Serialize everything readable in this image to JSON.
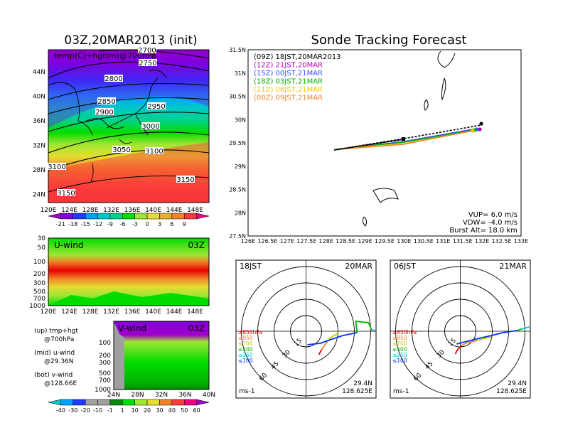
{
  "left_title": "03Z,20MAR2013 (init)",
  "right_title": "Sonde Tracking Forecast",
  "map700": {
    "label": "temp(C)+hgt(m)@700hPa",
    "lat_ticks": [
      "44N",
      "40N",
      "36N",
      "32N",
      "28N",
      "24N"
    ],
    "lon_ticks": [
      "120E",
      "124E",
      "128E",
      "132E",
      "136E",
      "140E",
      "144E",
      "148E"
    ],
    "contour_labels": [
      "2700",
      "2750",
      "2800",
      "2850",
      "2900",
      "2950",
      "3000",
      "3050",
      "3100",
      "3100",
      "3150",
      "3150"
    ],
    "colorbar_labels": [
      "-21",
      "-18",
      "-15",
      "-12",
      "-9",
      "-6",
      "-3",
      "0",
      "3",
      "6",
      "9"
    ],
    "colorbar_colors": [
      "#a000c8",
      "#8200dc",
      "#1e3cff",
      "#00a0ff",
      "#00c8c8",
      "#00d28c",
      "#00dc00",
      "#a0e632",
      "#e6dc32",
      "#e6af2d",
      "#f08228",
      "#fa3c3c",
      "#f00082"
    ]
  },
  "uwind": {
    "label": "U-wind",
    "time": "03Z",
    "y_ticks": [
      "30",
      "50",
      "100",
      "200",
      "300",
      "500",
      "700",
      "1000"
    ],
    "x_ticks": [
      "120E",
      "124E",
      "128E",
      "132E",
      "136E",
      "140E",
      "144E",
      "148E"
    ]
  },
  "vwind": {
    "label": "V-wind",
    "time": "03Z",
    "y_ticks": [
      "100",
      "200",
      "300",
      "500",
      "700",
      "1000"
    ],
    "x_ticks": [
      "24N",
      "28N",
      "32N",
      "36N",
      "40N"
    ],
    "colorbar_labels": [
      "-40",
      "-30",
      "-20",
      "-10",
      "-1",
      "1",
      "10",
      "20",
      "30",
      "40",
      "50",
      "60"
    ],
    "colorbar_colors": [
      "#00c8c8",
      "#00a0ff",
      "#1e3cff",
      "#a0a0a0",
      "#a0a0a0",
      "#008c00",
      "#00dc00",
      "#a0e632",
      "#e6dc32",
      "#f08228",
      "#fa3c3c",
      "#f00082",
      "#a000c8"
    ]
  },
  "notes": [
    {
      "a": "(up) tmp+hgt",
      "b": "@700hPa"
    },
    {
      "a": "(mid) u-wind",
      "b": "@29.36N"
    },
    {
      "a": "(bot) v-wind",
      "b": "@128.66E"
    }
  ],
  "track": {
    "y_ticks": [
      "31.5N",
      "31N",
      "30.5N",
      "30N",
      "29.5N",
      "29N",
      "28.5N",
      "28N",
      "27.5N"
    ],
    "x_ticks": [
      "126E",
      "126.5E",
      "127E",
      "127.5E",
      "128E",
      "128.5E",
      "129E",
      "129.5E",
      "130E",
      "130.5E",
      "131E",
      "131.5E",
      "132E",
      "132.5E",
      "133E"
    ],
    "legend": [
      {
        "text": "(09Z) 18JST,20MAR2013",
        "color": "#000000"
      },
      {
        "text": "(12Z) 21JST,20MAR",
        "color": "#b400b4"
      },
      {
        "text": "(15Z) 00JST,21MAR",
        "color": "#3c50ff"
      },
      {
        "text": "(18Z) 03JST,21MAR",
        "color": "#00b400"
      },
      {
        "text": "(21Z) 06JST,21MAR",
        "color": "#f0c800"
      },
      {
        "text": "(00Z) 09JST,21MAR",
        "color": "#f08228"
      }
    ],
    "params": [
      "VUP= 6.0 m/s",
      "VDW= -4.0 m/s",
      "Burst Alt= 18.0 km"
    ]
  },
  "hodo1": {
    "time": "18JST",
    "date": "20MAR",
    "lat": "29.4N",
    "lon": "128.625E",
    "unit": "ms-1"
  },
  "hodo2": {
    "time": "06JST",
    "date": "21MAR",
    "lat": "29.4N",
    "lon": "128.625E",
    "unit": "ms-1"
  },
  "hodo_rings": [
    "15",
    "30",
    "45",
    "60"
  ],
  "hodo_legend": [
    {
      "text": "≥850hPa",
      "color": "#e60000"
    },
    {
      "text": "≤850",
      "color": "#f08228"
    },
    {
      "text": "≤700",
      "color": "#c8c800"
    },
    {
      "text": "≤500",
      "color": "#00b400"
    },
    {
      "text": "≤250",
      "color": "#00c8c8"
    },
    {
      "text": "≤100",
      "color": "#0032ff"
    }
  ]
}
